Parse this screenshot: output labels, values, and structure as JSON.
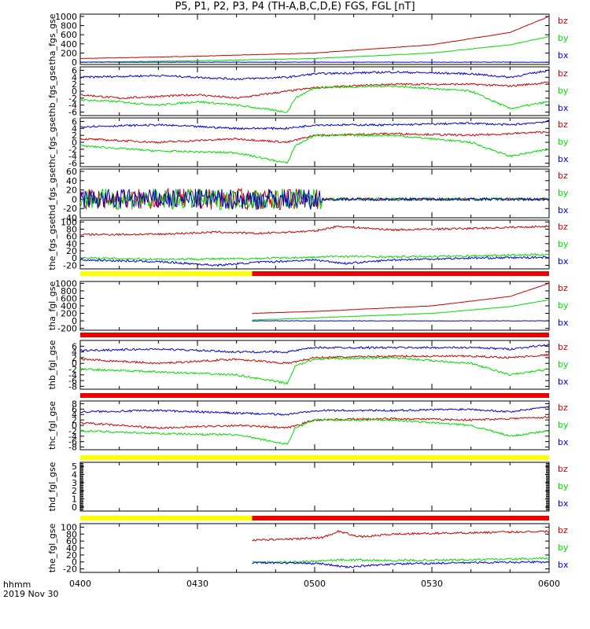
{
  "title": "P5, P1, P2, P3, P4 (TH-A,B,C,D,E) FGS, FGL [nT]",
  "time_label": "hhmm",
  "date_label": "2019 Nov 30",
  "colors": {
    "bx": "#0000cc",
    "by": "#00dd00",
    "bz": "#cc0000",
    "bar_yellow": "#ffff00",
    "bar_red": "#ee0000"
  },
  "chart_data": {
    "type": "line",
    "x_ticks": [
      "0400",
      "0430",
      "0500",
      "0530",
      "0600"
    ],
    "x_range": [
      "04:00",
      "06:00"
    ],
    "legend": [
      "bz",
      "by",
      "bx"
    ],
    "status_bars": [
      {
        "segments": [
          {
            "color": "yellow",
            "from": "04:00",
            "to": "04:44"
          },
          {
            "color": "red",
            "from": "04:44",
            "to": "06:00"
          }
        ]
      },
      {
        "segments": [
          {
            "color": "red",
            "from": "04:00",
            "to": "06:00"
          }
        ]
      },
      {
        "segments": [
          {
            "color": "red",
            "from": "04:00",
            "to": "06:00"
          }
        ]
      },
      {
        "segments": [
          {
            "color": "yellow",
            "from": "04:00",
            "to": "06:00"
          }
        ]
      },
      {
        "segments": [
          {
            "color": "yellow",
            "from": "04:00",
            "to": "04:44"
          },
          {
            "color": "red",
            "from": "04:44",
            "to": "06:00"
          }
        ]
      }
    ],
    "panels": [
      {
        "ylabel": "tha_fgs_gse",
        "yticks": [
          "1000",
          "800",
          "600",
          "400",
          "200",
          "0"
        ],
        "ylim": [
          -50,
          1050
        ],
        "series": [
          {
            "name": "bz",
            "x": [
              0,
              30,
              60,
              90,
              110,
              120
            ],
            "y": [
              80,
              130,
              200,
              380,
              650,
              1000
            ]
          },
          {
            "name": "by",
            "x": [
              0,
              30,
              60,
              90,
              110,
              120
            ],
            "y": [
              0,
              30,
              80,
              200,
              380,
              560
            ]
          },
          {
            "name": "bx",
            "x": [
              0,
              120
            ],
            "y": [
              0,
              0
            ]
          }
        ]
      },
      {
        "ylabel": "thb_fgs_gse",
        "yticks": [
          "6",
          "4",
          "2",
          "0",
          "-2",
          "-4",
          "-6"
        ],
        "ylim": [
          -7,
          7
        ],
        "series": [
          {
            "name": "bz",
            "x": [
              0,
              10,
              20,
              30,
              40,
              53,
              60,
              80,
              100,
              110,
              120
            ],
            "y": [
              -1,
              -2,
              -1.5,
              -1,
              -2,
              0,
              1,
              2,
              2,
              1.5,
              2.5
            ]
          },
          {
            "name": "by",
            "x": [
              0,
              10,
              20,
              30,
              40,
              53,
              55,
              60,
              80,
              100,
              110,
              120
            ],
            "y": [
              -2.5,
              -3,
              -4,
              -3,
              -4,
              -6,
              -2,
              1,
              1.5,
              0,
              -5,
              -3
            ]
          },
          {
            "name": "bx",
            "x": [
              0,
              20,
              40,
              53,
              60,
              80,
              100,
              110,
              120
            ],
            "y": [
              4,
              4.5,
              3.5,
              4,
              5,
              5.5,
              5,
              4,
              6
            ]
          }
        ]
      },
      {
        "ylabel": "thc_fgs_gse",
        "yticks": [
          "6",
          "4",
          "2",
          "0",
          "-2",
          "-4",
          "-6"
        ],
        "ylim": [
          -7,
          7
        ],
        "series": [
          {
            "name": "bz",
            "x": [
              0,
              20,
              40,
              53,
              60,
              80,
              100,
              110,
              120
            ],
            "y": [
              1,
              0,
              1,
              0,
              2,
              2.5,
              2,
              2.5,
              3
            ]
          },
          {
            "name": "by",
            "x": [
              0,
              20,
              40,
              53,
              55,
              60,
              80,
              100,
              110,
              120
            ],
            "y": [
              -1,
              -2.5,
              -3,
              -6,
              -1,
              2,
              2,
              0,
              -4,
              -2
            ]
          },
          {
            "name": "bx",
            "x": [
              0,
              20,
              40,
              53,
              60,
              80,
              100,
              110,
              120
            ],
            "y": [
              4.5,
              5,
              4,
              4,
              5,
              5,
              5.5,
              5,
              6
            ]
          }
        ]
      },
      {
        "ylabel": "thd_fgs_gse",
        "yticks": [
          "60",
          "40",
          "20",
          "0",
          "-20",
          "-40"
        ],
        "ylim": [
          -40,
          65
        ],
        "series": [
          {
            "name": "bz",
            "x": [
              0,
              62,
              120
            ],
            "y": [
              0,
              0,
              0
            ]
          },
          {
            "name": "by",
            "x": [
              0,
              62,
              120
            ],
            "y": [
              0,
              0,
              0
            ]
          },
          {
            "name": "bx",
            "x": [
              0,
              62,
              120
            ],
            "y": [
              0,
              0,
              0
            ]
          }
        ]
      },
      {
        "ylabel": "the_fgs_gse",
        "yticks": [
          "100",
          "80",
          "60",
          "40",
          "20",
          "0",
          "-20"
        ],
        "ylim": [
          -30,
          105
        ],
        "series": [
          {
            "name": "bz",
            "x": [
              0,
              20,
              35,
              45,
              60,
              66,
              80,
              100,
              120
            ],
            "y": [
              65,
              66,
              72,
              68,
              75,
              88,
              78,
              82,
              88
            ]
          },
          {
            "name": "by",
            "x": [
              0,
              20,
              40,
              60,
              66,
              80,
              100,
              120
            ],
            "y": [
              0,
              -3,
              -2,
              2,
              5,
              3,
              6,
              10
            ]
          },
          {
            "name": "bx",
            "x": [
              0,
              20,
              35,
              45,
              60,
              68,
              80,
              100,
              120
            ],
            "y": [
              -5,
              -10,
              -20,
              -12,
              -5,
              -15,
              -5,
              0,
              2
            ]
          }
        ]
      },
      {
        "ylabel": "tha_fgl_gse",
        "yticks": [
          "1000",
          "800",
          "600",
          "400",
          "200",
          "0",
          "-200"
        ],
        "ylim": [
          -250,
          1050
        ],
        "series": [
          {
            "name": "bz",
            "x": [
              44,
              60,
              90,
              110,
              120
            ],
            "y": [
              200,
              250,
              400,
              650,
              1000
            ]
          },
          {
            "name": "by",
            "x": [
              44,
              60,
              90,
              110,
              120
            ],
            "y": [
              20,
              80,
              200,
              380,
              560
            ]
          },
          {
            "name": "bx",
            "x": [
              44,
              120
            ],
            "y": [
              0,
              0
            ]
          }
        ]
      },
      {
        "ylabel": "thb_fgl_gse",
        "yticks": [
          "6",
          "4",
          "2",
          "0",
          "-2",
          "-4",
          "-6",
          "-8"
        ],
        "ylim": [
          -9,
          8
        ],
        "series": [
          {
            "name": "bz",
            "x": [
              0,
              20,
              40,
              53,
              60,
              80,
              100,
              110,
              120
            ],
            "y": [
              1.5,
              0,
              1.5,
              0,
              2,
              2.5,
              2.5,
              2,
              3
            ]
          },
          {
            "name": "by",
            "x": [
              0,
              20,
              40,
              53,
              55,
              60,
              80,
              100,
              110,
              120
            ],
            "y": [
              -2,
              -3,
              -4,
              -7,
              -1,
              1.5,
              2,
              0,
              -4,
              -2
            ]
          },
          {
            "name": "bx",
            "x": [
              0,
              20,
              40,
              53,
              60,
              80,
              100,
              110,
              120
            ],
            "y": [
              4.5,
              5,
              4,
              4,
              5.5,
              5.5,
              5.5,
              5,
              6.5
            ]
          }
        ]
      },
      {
        "ylabel": "thc_fgl_gse",
        "yticks": [
          "8",
          "6",
          "4",
          "2",
          "0",
          "-2",
          "-4",
          "-6",
          "-8"
        ],
        "ylim": [
          -9,
          9
        ],
        "series": [
          {
            "name": "bz",
            "x": [
              0,
              20,
              40,
              53,
              60,
              80,
              100,
              110,
              120
            ],
            "y": [
              1,
              -1,
              0,
              -1,
              2,
              2.5,
              2,
              2.5,
              3
            ]
          },
          {
            "name": "by",
            "x": [
              0,
              20,
              40,
              53,
              55,
              60,
              80,
              100,
              110,
              120
            ],
            "y": [
              -2,
              -3,
              -3.5,
              -7,
              -1,
              2,
              2,
              0,
              -4,
              -2
            ]
          },
          {
            "name": "bx",
            "x": [
              0,
              20,
              40,
              53,
              60,
              80,
              100,
              110,
              120
            ],
            "y": [
              5,
              5.5,
              4.5,
              4,
              5.5,
              5.5,
              6,
              5,
              7
            ]
          }
        ]
      },
      {
        "ylabel": "thd_fgl_gse",
        "yticks": [
          "5",
          "4",
          "3",
          "2",
          "1",
          "0"
        ],
        "ylim": [
          -0.5,
          5.5
        ],
        "series": []
      },
      {
        "ylabel": "the_fgl_gse",
        "yticks": [
          "100",
          "80",
          "60",
          "40",
          "20",
          "0",
          "-20"
        ],
        "ylim": [
          -30,
          110
        ],
        "series": [
          {
            "name": "bz",
            "x": [
              44,
              55,
              62,
              66,
              72,
              80,
              100,
              120
            ],
            "y": [
              63,
              66,
              70,
              88,
              72,
              80,
              84,
              88
            ]
          },
          {
            "name": "by",
            "x": [
              44,
              55,
              66,
              80,
              100,
              120
            ],
            "y": [
              0,
              0,
              6,
              4,
              6,
              10
            ]
          },
          {
            "name": "bx",
            "x": [
              44,
              55,
              62,
              68,
              80,
              100,
              120
            ],
            "y": [
              -2,
              -3,
              -5,
              -15,
              -6,
              -2,
              0
            ]
          }
        ]
      }
    ]
  }
}
